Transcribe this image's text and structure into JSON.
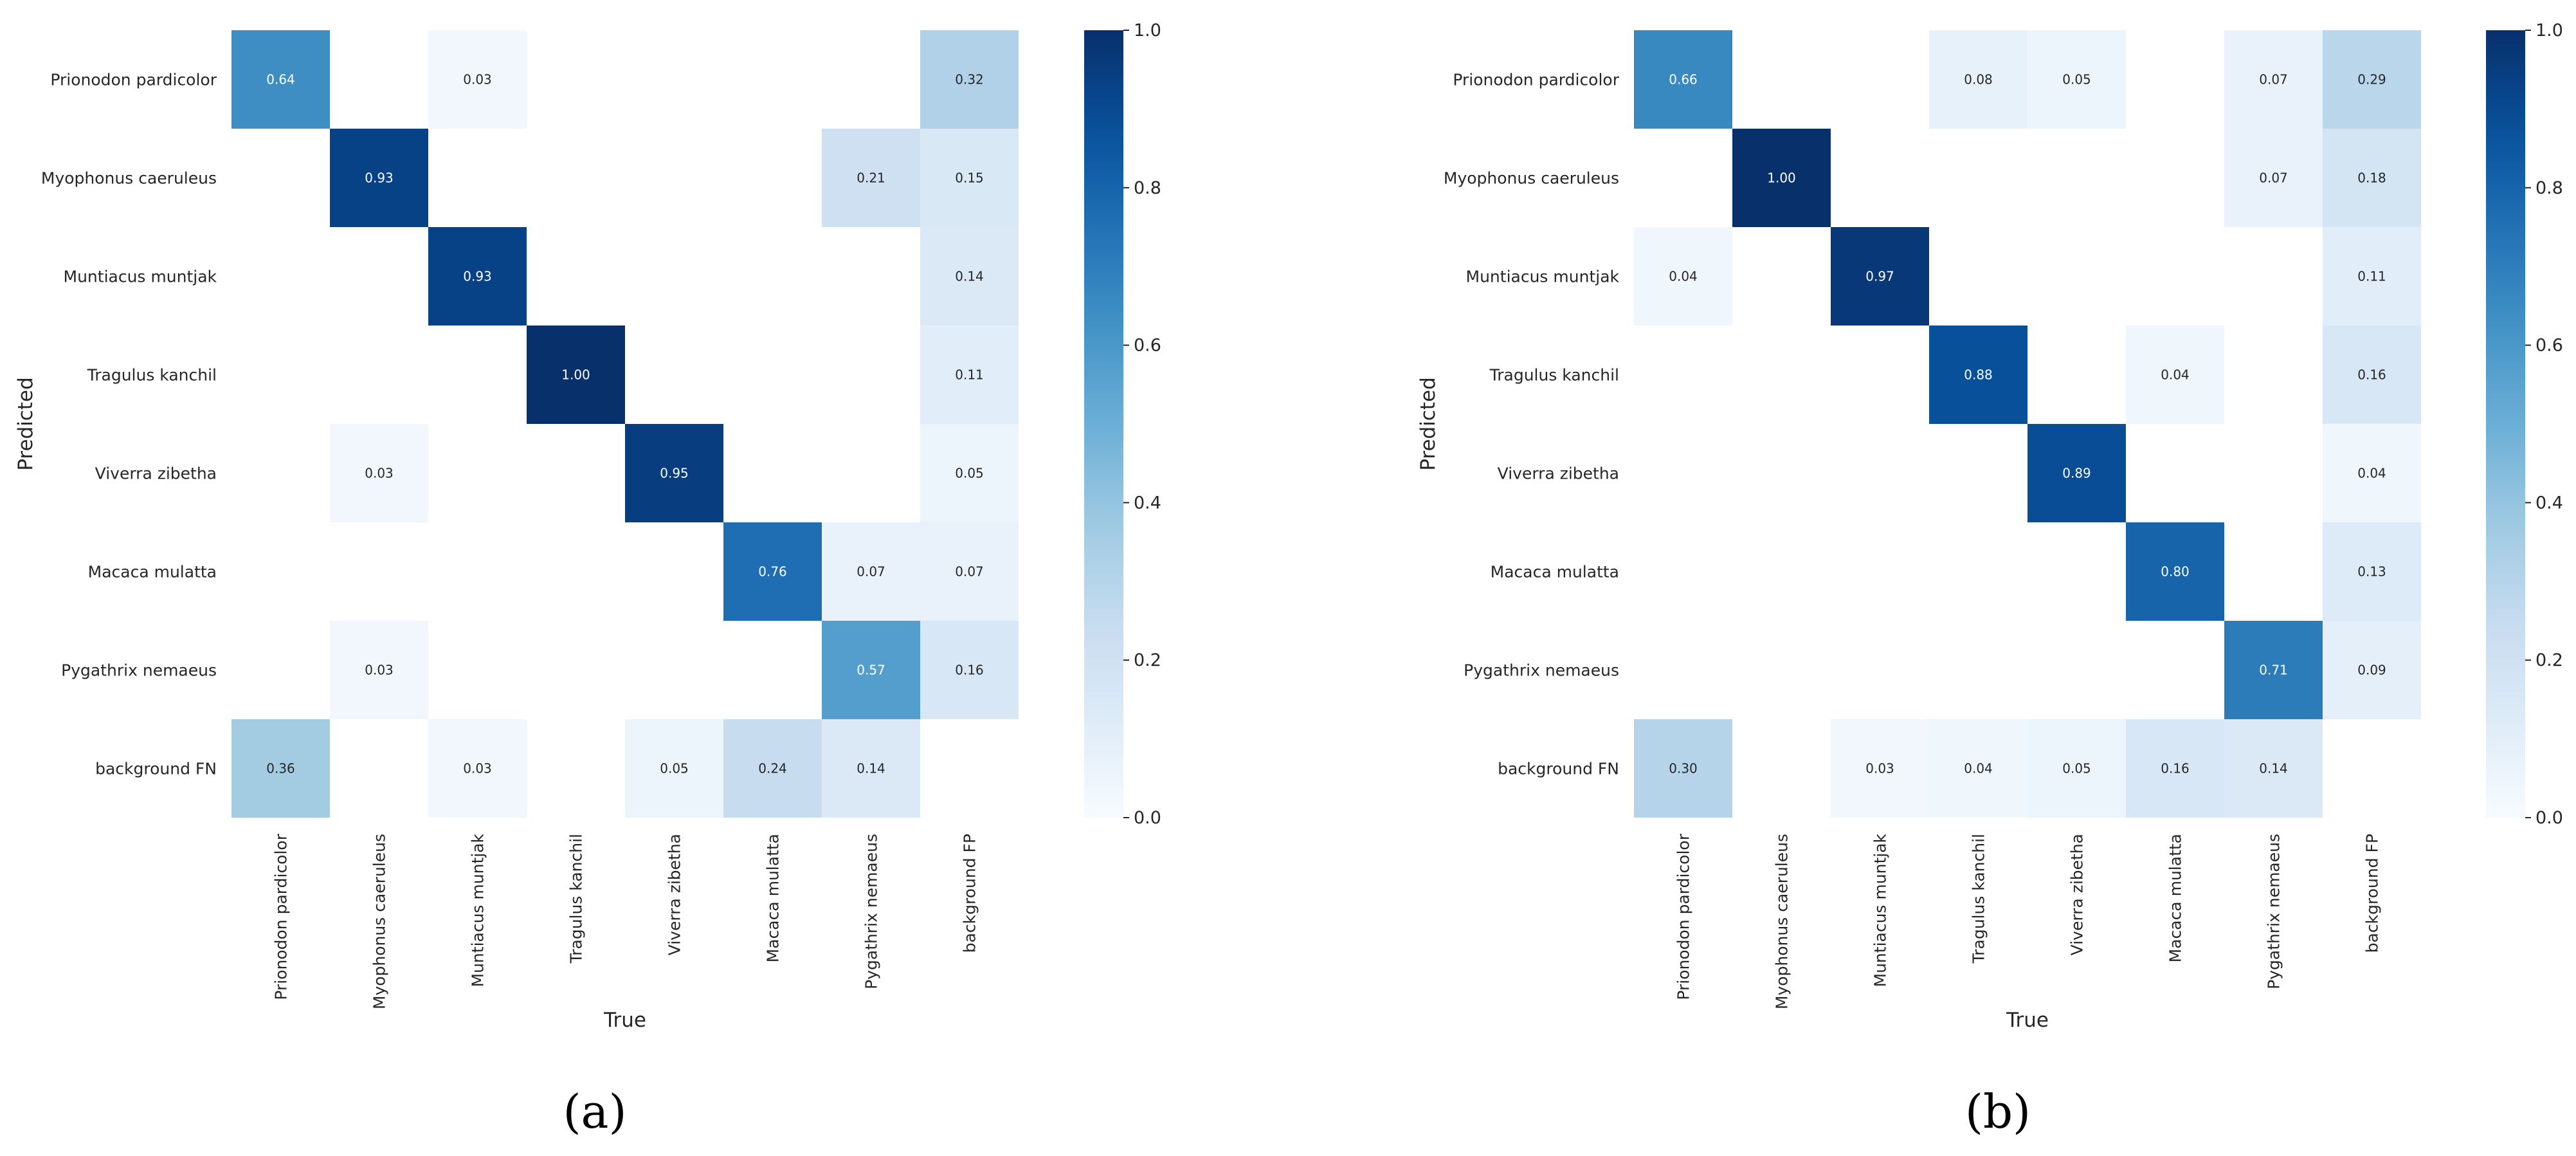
{
  "chart_data": [
    {
      "type": "heatmap",
      "panel_label": "(a)",
      "xlabel": "True",
      "ylabel": "Predicted",
      "x_categories": [
        "Prionodon pardicolor",
        "Myophonus caeruleus",
        "Muntiacus muntjak",
        "Tragulus kanchil",
        "Viverra zibetha",
        "Macaca mulatta",
        "Pygathrix nemaeus",
        "background FP"
      ],
      "y_categories": [
        "Prionodon pardicolor",
        "Myophonus caeruleus",
        "Muntiacus muntjak",
        "Tragulus kanchil",
        "Viverra zibetha",
        "Macaca mulatta",
        "Pygathrix nemaeus",
        "background FN"
      ],
      "values": [
        [
          0.64,
          null,
          0.03,
          null,
          null,
          null,
          null,
          0.32
        ],
        [
          null,
          0.93,
          null,
          null,
          null,
          null,
          0.21,
          0.15
        ],
        [
          null,
          null,
          0.93,
          null,
          null,
          null,
          null,
          0.14
        ],
        [
          null,
          null,
          null,
          1.0,
          null,
          null,
          null,
          0.11
        ],
        [
          null,
          0.03,
          null,
          null,
          0.95,
          null,
          null,
          0.05
        ],
        [
          null,
          null,
          null,
          null,
          null,
          0.76,
          0.07,
          0.07
        ],
        [
          null,
          0.03,
          null,
          null,
          null,
          null,
          0.57,
          0.16
        ],
        [
          0.36,
          null,
          0.03,
          null,
          0.05,
          0.24,
          0.14,
          null
        ]
      ],
      "value_format": "0.00",
      "colormap": "Blues",
      "colorbar": {
        "min": 0.0,
        "max": 1.0,
        "ticks": [
          "0.0",
          "0.2",
          "0.4",
          "0.6",
          "0.8",
          "1.0"
        ]
      }
    },
    {
      "type": "heatmap",
      "panel_label": "(b)",
      "xlabel": "True",
      "ylabel": "Predicted",
      "x_categories": [
        "Prionodon pardicolor",
        "Myophonus caeruleus",
        "Muntiacus muntjak",
        "Tragulus kanchil",
        "Viverra zibetha",
        "Macaca mulatta",
        "Pygathrix nemaeus",
        "background FP"
      ],
      "y_categories": [
        "Prionodon pardicolor",
        "Myophonus caeruleus",
        "Muntiacus muntjak",
        "Tragulus kanchil",
        "Viverra zibetha",
        "Macaca mulatta",
        "Pygathrix nemaeus",
        "background FN"
      ],
      "values": [
        [
          0.66,
          null,
          null,
          0.08,
          0.05,
          null,
          0.07,
          0.29
        ],
        [
          null,
          1.0,
          null,
          null,
          null,
          null,
          0.07,
          0.18
        ],
        [
          0.04,
          null,
          0.97,
          null,
          null,
          null,
          null,
          0.11
        ],
        [
          null,
          null,
          null,
          0.88,
          null,
          0.04,
          null,
          0.16
        ],
        [
          null,
          null,
          null,
          null,
          0.89,
          null,
          null,
          0.04
        ],
        [
          null,
          null,
          null,
          null,
          null,
          0.8,
          null,
          0.13
        ],
        [
          null,
          null,
          null,
          null,
          null,
          null,
          0.71,
          0.09
        ],
        [
          0.3,
          null,
          0.03,
          0.04,
          0.05,
          0.16,
          0.14,
          null
        ]
      ],
      "value_format": "0.00",
      "colormap": "Blues",
      "colorbar": {
        "min": 0.0,
        "max": 1.0,
        "ticks": [
          "0.0",
          "0.2",
          "0.4",
          "0.6",
          "0.8",
          "1.0"
        ]
      }
    }
  ]
}
